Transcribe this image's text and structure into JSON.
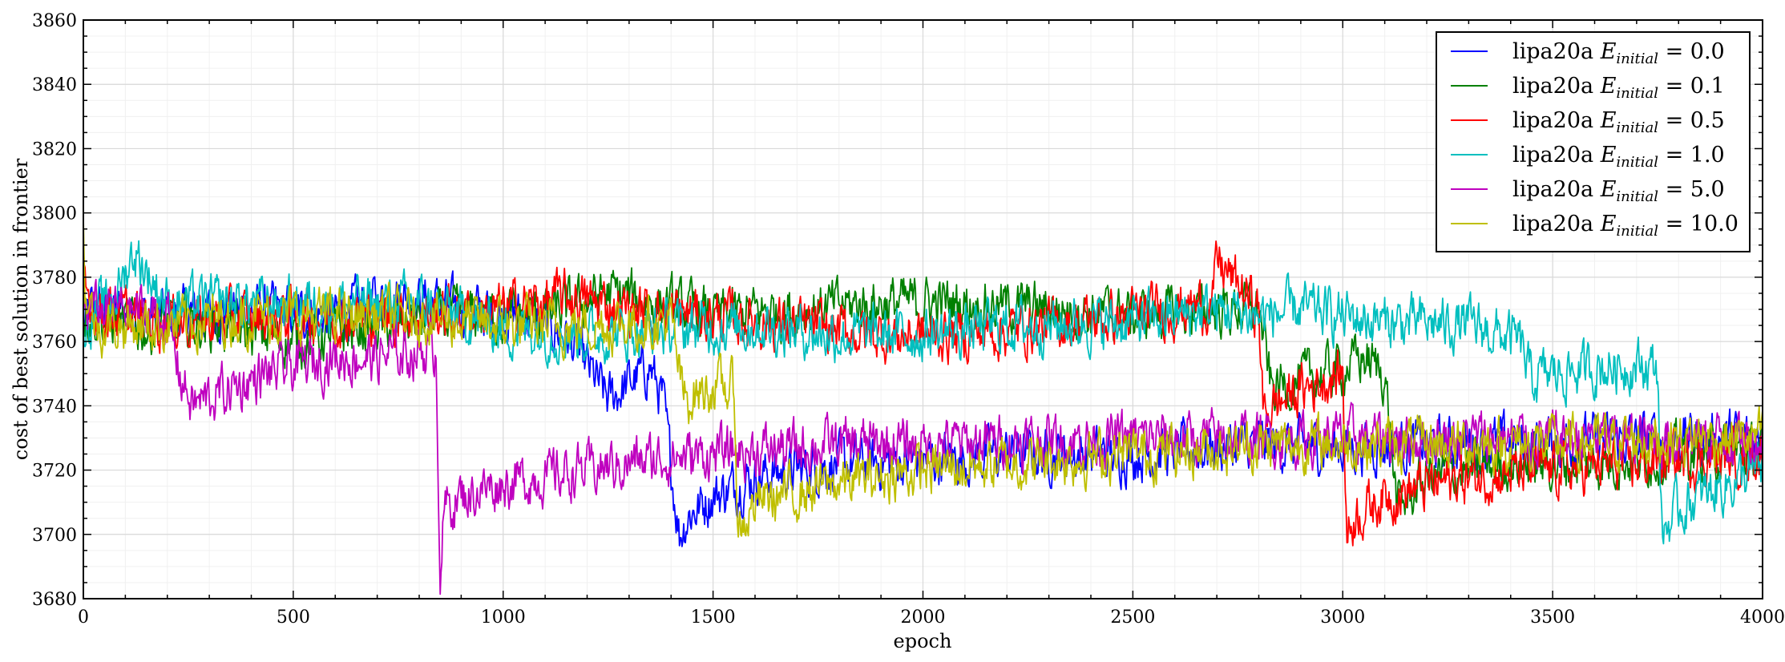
{
  "chart_data": {
    "type": "line",
    "title": "",
    "xlabel": "epoch",
    "ylabel": "cost of best solution in frontier",
    "xlim": [
      0,
      4000
    ],
    "ylim": [
      3680,
      3860
    ],
    "xticks": [
      0,
      500,
      1000,
      1500,
      2000,
      2500,
      3000,
      3500,
      4000
    ],
    "yticks": [
      3680,
      3700,
      3720,
      3740,
      3760,
      3780,
      3800,
      3820,
      3840,
      3860
    ],
    "grid": true,
    "legend_position": "top-right",
    "series": [
      {
        "name": "lipa20a E_initial = 0.0",
        "label_prefix": "lipa20a ",
        "label_var": "E",
        "label_sub": "initial",
        "label_value": " = 0.0",
        "color": "#0000ff",
        "noise": 8,
        "x": [
          0,
          20,
          200,
          400,
          600,
          750,
          900,
          1050,
          1150,
          1250,
          1350,
          1380,
          1420,
          1440,
          1500,
          1600,
          1700,
          1800,
          2000,
          2200,
          2500,
          2800,
          3000,
          3200,
          3500,
          3800,
          4000
        ],
        "y": [
          3765,
          3770,
          3768,
          3770,
          3768,
          3775,
          3770,
          3768,
          3762,
          3742,
          3752,
          3742,
          3700,
          3706,
          3712,
          3718,
          3720,
          3722,
          3723,
          3725,
          3725,
          3728,
          3727,
          3728,
          3729,
          3730,
          3730
        ]
      },
      {
        "name": "lipa20a E_initial = 0.1",
        "label_prefix": "lipa20a ",
        "label_var": "E",
        "label_sub": "initial",
        "label_value": " = 0.1",
        "color": "#008000",
        "noise": 8,
        "x": [
          0,
          20,
          150,
          300,
          500,
          700,
          900,
          1100,
          1250,
          1300,
          1500,
          1700,
          1900,
          2100,
          2300,
          2500,
          2700,
          2800,
          2830,
          2900,
          3000,
          3050,
          3100,
          3130,
          3200,
          3400,
          3600,
          3800,
          4000
        ],
        "y": [
          3770,
          3768,
          3764,
          3766,
          3760,
          3765,
          3768,
          3768,
          3775,
          3774,
          3768,
          3770,
          3772,
          3772,
          3770,
          3768,
          3770,
          3770,
          3745,
          3748,
          3752,
          3755,
          3750,
          3708,
          3718,
          3722,
          3722,
          3725,
          3725
        ]
      },
      {
        "name": "lipa20a E_initial = 0.5",
        "label_prefix": "lipa20a ",
        "label_var": "E",
        "label_sub": "initial",
        "label_value": " = 0.5",
        "color": "#ff0000",
        "noise": 8,
        "x": [
          0,
          5,
          30,
          200,
          500,
          800,
          1000,
          1150,
          1300,
          1500,
          1700,
          1900,
          2100,
          2300,
          2500,
          2690,
          2700,
          2800,
          2810,
          2900,
          3000,
          3010,
          3030,
          3100,
          3300,
          3500,
          3700,
          4000
        ],
        "y": [
          3785,
          3775,
          3770,
          3766,
          3768,
          3768,
          3770,
          3774,
          3770,
          3768,
          3765,
          3762,
          3762,
          3765,
          3768,
          3772,
          3785,
          3770,
          3738,
          3745,
          3750,
          3700,
          3706,
          3712,
          3718,
          3720,
          3722,
          3725
        ]
      },
      {
        "name": "lipa20a E_initial = 1.0",
        "label_prefix": "lipa20a ",
        "label_var": "E",
        "label_sub": "initial",
        "label_value": " = 1.0",
        "color": "#00bfbf",
        "noise": 8,
        "x": [
          0,
          80,
          120,
          200,
          400,
          700,
          800,
          1000,
          1200,
          1400,
          1600,
          1800,
          2000,
          2200,
          2500,
          2700,
          2800,
          2900,
          3100,
          3300,
          3420,
          3450,
          3500,
          3700,
          3750,
          3760,
          3800,
          3900,
          4000
        ],
        "y": [
          3765,
          3775,
          3788,
          3772,
          3772,
          3772,
          3772,
          3764,
          3762,
          3764,
          3765,
          3762,
          3762,
          3765,
          3766,
          3770,
          3768,
          3770,
          3766,
          3765,
          3760,
          3748,
          3750,
          3753,
          3752,
          3700,
          3708,
          3715,
          3720
        ]
      },
      {
        "name": "lipa20a E_initial = 5.0",
        "label_prefix": "lipa20a ",
        "label_var": "E",
        "label_sub": "initial",
        "label_value": " = 5.0",
        "color": "#bf00bf",
        "noise": 8,
        "x": [
          0,
          100,
          200,
          230,
          260,
          400,
          500,
          600,
          700,
          840,
          850,
          860,
          900,
          1000,
          1100,
          1200,
          1400,
          1600,
          1800,
          2000,
          2200,
          2500,
          2800,
          3000,
          3300,
          3600,
          4000
        ],
        "y": [
          3770,
          3770,
          3768,
          3750,
          3740,
          3748,
          3752,
          3755,
          3755,
          3758,
          3690,
          3708,
          3712,
          3716,
          3718,
          3720,
          3724,
          3726,
          3728,
          3728,
          3729,
          3730,
          3730,
          3730,
          3730,
          3730,
          3730
        ]
      },
      {
        "name": "lipa20a E_initial = 10.0",
        "label_prefix": "lipa20a ",
        "label_var": "E",
        "label_sub": "initial",
        "label_value": " = 10.0",
        "color": "#bfbf00",
        "noise": 8,
        "x": [
          0,
          5,
          30,
          200,
          400,
          600,
          800,
          1000,
          1200,
          1400,
          1430,
          1500,
          1550,
          1560,
          1600,
          1800,
          2000,
          2200,
          2500,
          2800,
          3000,
          3200,
          3500,
          3800,
          4000
        ],
        "y": [
          3800,
          3775,
          3765,
          3765,
          3768,
          3768,
          3768,
          3765,
          3765,
          3766,
          3742,
          3746,
          3745,
          3700,
          3710,
          3716,
          3720,
          3722,
          3725,
          3728,
          3728,
          3728,
          3728,
          3730,
          3730
        ]
      }
    ]
  }
}
